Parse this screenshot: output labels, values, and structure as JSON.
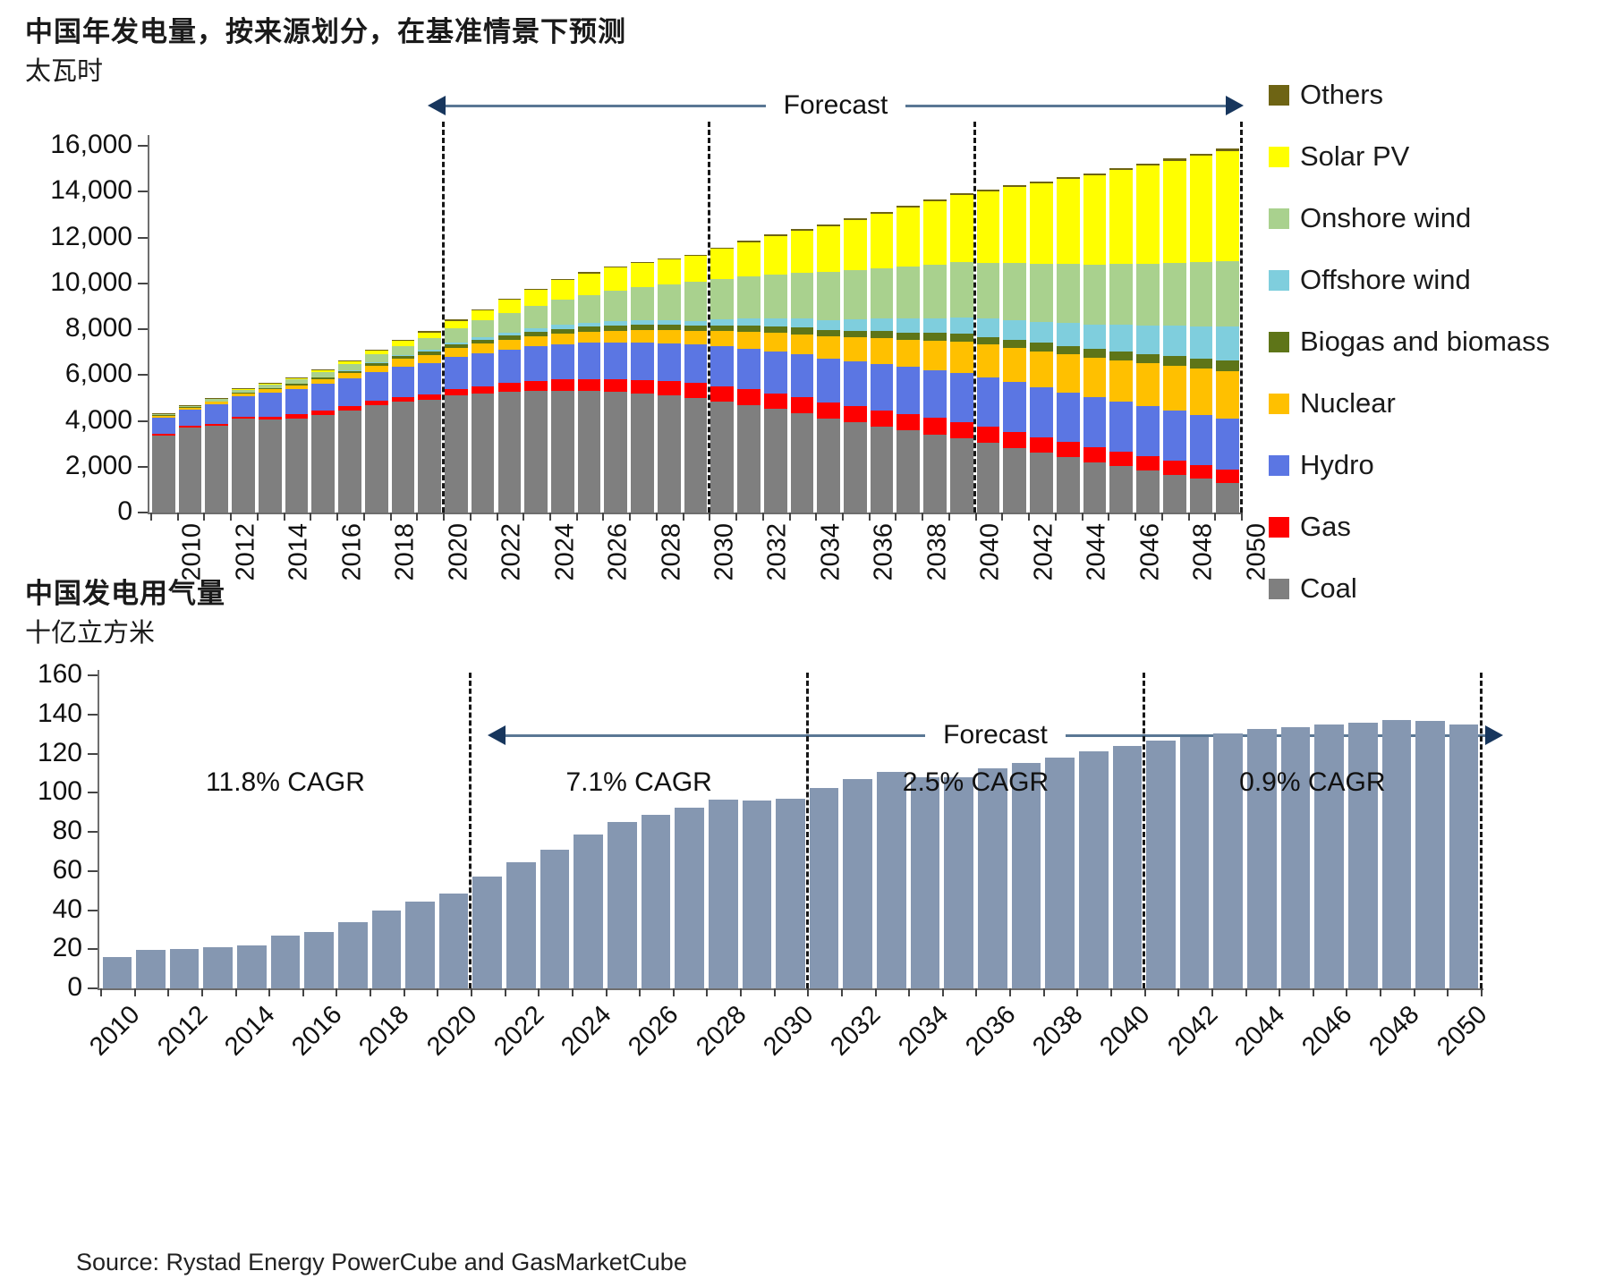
{
  "page": {
    "source": "Source: Rystad Energy PowerCube and GasMarketCube"
  },
  "chart_data": [
    {
      "id": "generation-by-source",
      "type": "bar",
      "subtype": "stacked",
      "title": "中国年发电量，按来源划分，在基准情景下预测",
      "unit": "太瓦时",
      "forecast_label": "Forecast",
      "ylim": [
        0,
        16000
      ],
      "y_tick_labels": [
        "16,000",
        "14,000",
        "12,000",
        "10,000",
        "8,000",
        "6,000",
        "4,000",
        "2,000",
        "0"
      ],
      "years": [
        2010,
        2011,
        2012,
        2013,
        2014,
        2015,
        2016,
        2017,
        2018,
        2019,
        2020,
        2021,
        2022,
        2023,
        2024,
        2025,
        2026,
        2027,
        2028,
        2029,
        2030,
        2031,
        2032,
        2033,
        2034,
        2035,
        2036,
        2037,
        2038,
        2039,
        2040,
        2041,
        2042,
        2043,
        2044,
        2045,
        2046,
        2047,
        2048,
        2049,
        2050
      ],
      "x_tick_labels": [
        "2010",
        "2012",
        "2014",
        "2016",
        "2018",
        "2020",
        "2022",
        "2024",
        "2026",
        "2028",
        "2030",
        "2032",
        "2034",
        "2036",
        "2038",
        "2040",
        "2042",
        "2044",
        "2046",
        "2048",
        "2050"
      ],
      "forecast_boundaries_after_year": [
        2020,
        2030,
        2040,
        2050
      ],
      "series": [
        {
          "name": "Coal",
          "color": "#7F7F7F",
          "values": [
            3350,
            3720,
            3780,
            4080,
            4070,
            4110,
            4240,
            4450,
            4680,
            4820,
            4920,
            5100,
            5180,
            5250,
            5300,
            5320,
            5300,
            5260,
            5200,
            5100,
            4990,
            4850,
            4700,
            4520,
            4330,
            4100,
            3930,
            3760,
            3580,
            3410,
            3240,
            3030,
            2820,
            2610,
            2400,
            2200,
            2020,
            1830,
            1650,
            1470,
            1290
          ]
        },
        {
          "name": "Gas",
          "color": "#FE0000",
          "values": [
            80,
            85,
            85,
            90,
            110,
            170,
            190,
            200,
            215,
            230,
            240,
            290,
            340,
            390,
            435,
            480,
            520,
            555,
            590,
            620,
            650,
            660,
            670,
            680,
            685,
            690,
            695,
            700,
            705,
            710,
            715,
            705,
            695,
            680,
            665,
            650,
            635,
            620,
            610,
            597,
            585
          ]
        },
        {
          "name": "Hydro",
          "color": "#5B76E3",
          "values": [
            720,
            670,
            860,
            900,
            1060,
            1110,
            1180,
            1190,
            1230,
            1300,
            1360,
            1400,
            1440,
            1480,
            1515,
            1550,
            1580,
            1610,
            1640,
            1665,
            1690,
            1740,
            1790,
            1840,
            1885,
            1930,
            1975,
            2020,
            2060,
            2100,
            2145,
            2155,
            2165,
            2170,
            2175,
            2180,
            2185,
            2190,
            2197,
            2203,
            2210
          ]
        },
        {
          "name": "Nuclear",
          "color": "#FFC000",
          "values": [
            75,
            87,
            98,
            112,
            133,
            170,
            213,
            248,
            295,
            349,
            366,
            383,
            400,
            417,
            434,
            450,
            477,
            504,
            531,
            558,
            585,
            658,
            731,
            804,
            877,
            950,
            1033,
            1116,
            1199,
            1282,
            1365,
            1436,
            1507,
            1578,
            1649,
            1720,
            1792,
            1864,
            1936,
            2008,
            2080
          ]
        },
        {
          "name": "Biogas and biomass",
          "color": "#5E7518",
          "values": [
            25,
            28,
            32,
            36,
            44,
            55,
            65,
            80,
            95,
            112,
            130,
            148,
            166,
            184,
            202,
            220,
            228,
            236,
            244,
            252,
            260,
            268,
            276,
            284,
            292,
            300,
            306,
            312,
            318,
            324,
            330,
            342,
            354,
            366,
            378,
            390,
            403,
            416,
            429,
            442,
            455
          ]
        },
        {
          "name": "Offshore wind",
          "color": "#7FCEDD",
          "values": [
            1,
            2,
            3,
            5,
            8,
            10,
            14,
            20,
            30,
            50,
            80,
            96,
            112,
            128,
            144,
            160,
            167,
            174,
            181,
            188,
            195,
            242,
            289,
            336,
            383,
            430,
            487,
            544,
            601,
            658,
            715,
            784,
            853,
            922,
            991,
            1060,
            1147,
            1234,
            1321,
            1408,
            1495
          ]
        },
        {
          "name": "Onshore wind",
          "color": "#A9D18E",
          "values": [
            45,
            70,
            95,
            135,
            155,
            185,
            230,
            290,
            350,
            400,
            500,
            620,
            740,
            860,
            980,
            1100,
            1218,
            1336,
            1454,
            1572,
            1690,
            1772,
            1854,
            1936,
            2018,
            2100,
            2161,
            2222,
            2283,
            2344,
            2405,
            2448,
            2491,
            2534,
            2577,
            2620,
            2668,
            2716,
            2764,
            2812,
            2860
          ]
        },
        {
          "name": "Solar PV",
          "color": "#FFFF00",
          "values": [
            1,
            3,
            6,
            15,
            25,
            40,
            67,
            118,
            177,
            224,
            260,
            330,
            430,
            580,
            700,
            850,
            950,
            1000,
            1050,
            1090,
            1130,
            1310,
            1490,
            1670,
            1835,
            2000,
            2185,
            2370,
            2555,
            2740,
            2925,
            3120,
            3315,
            3510,
            3705,
            3900,
            4082,
            4264,
            4446,
            4628,
            4810
          ]
        },
        {
          "name": "Others",
          "color": "#6E6414",
          "values": [
            30,
            32,
            34,
            36,
            38,
            40,
            42,
            44,
            46,
            48,
            50,
            51,
            52,
            53,
            54,
            55,
            56,
            57,
            58,
            59,
            60,
            62,
            64,
            66,
            68,
            70,
            72,
            74,
            76,
            78,
            80,
            82,
            84,
            86,
            88,
            90,
            92,
            94,
            96,
            98,
            100
          ]
        }
      ],
      "legend_top_to_bottom": [
        "Others",
        "Solar PV",
        "Onshore wind",
        "Offshore wind",
        "Biogas and biomass",
        "Nuclear",
        "Hydro",
        "Gas",
        "Coal"
      ]
    },
    {
      "id": "gas-for-power",
      "type": "bar",
      "subtype": "single",
      "title": "中国发电用气量",
      "unit": "十亿立方米",
      "forecast_label": "Forecast",
      "bar_color": "#8597B1",
      "ylim": [
        0,
        160
      ],
      "y_tick_labels": [
        "160",
        "140",
        "120",
        "100",
        "80",
        "60",
        "40",
        "20",
        "0"
      ],
      "years": [
        2010,
        2011,
        2012,
        2013,
        2014,
        2015,
        2016,
        2017,
        2018,
        2019,
        2020,
        2021,
        2022,
        2023,
        2024,
        2025,
        2026,
        2027,
        2028,
        2029,
        2030,
        2031,
        2032,
        2033,
        2034,
        2035,
        2036,
        2037,
        2038,
        2039,
        2040,
        2041,
        2042,
        2043,
        2044,
        2045,
        2046,
        2047,
        2048,
        2049,
        2050
      ],
      "x_tick_labels": [
        "2010",
        "2012",
        "2014",
        "2016",
        "2018",
        "2020",
        "2022",
        "2024",
        "2026",
        "2028",
        "2030",
        "2032",
        "2034",
        "2036",
        "2038",
        "2040",
        "2042",
        "2044",
        "2046",
        "2048",
        "2050"
      ],
      "values": [
        16,
        19.5,
        20,
        21,
        22,
        27,
        29,
        34,
        40,
        44.5,
        48.5,
        57,
        64.5,
        71,
        78.5,
        85,
        88.5,
        92.5,
        96.5,
        96,
        97,
        102.5,
        107,
        110.5,
        108,
        108,
        112.5,
        115,
        118,
        121,
        124,
        126.5,
        128.5,
        130.5,
        132.5,
        133.5,
        135,
        136,
        137,
        136.5,
        135
      ],
      "forecast_boundaries_after_year": [
        2020,
        2030,
        2040,
        2050
      ],
      "cagr_segments": [
        {
          "label": "11.8% CAGR",
          "from": 2010,
          "to": 2020
        },
        {
          "label": "7.1% CAGR",
          "from": 2021,
          "to": 2030
        },
        {
          "label": "2.5% CAGR",
          "from": 2031,
          "to": 2040
        },
        {
          "label": "0.9% CAGR",
          "from": 2041,
          "to": 2050
        }
      ]
    }
  ]
}
